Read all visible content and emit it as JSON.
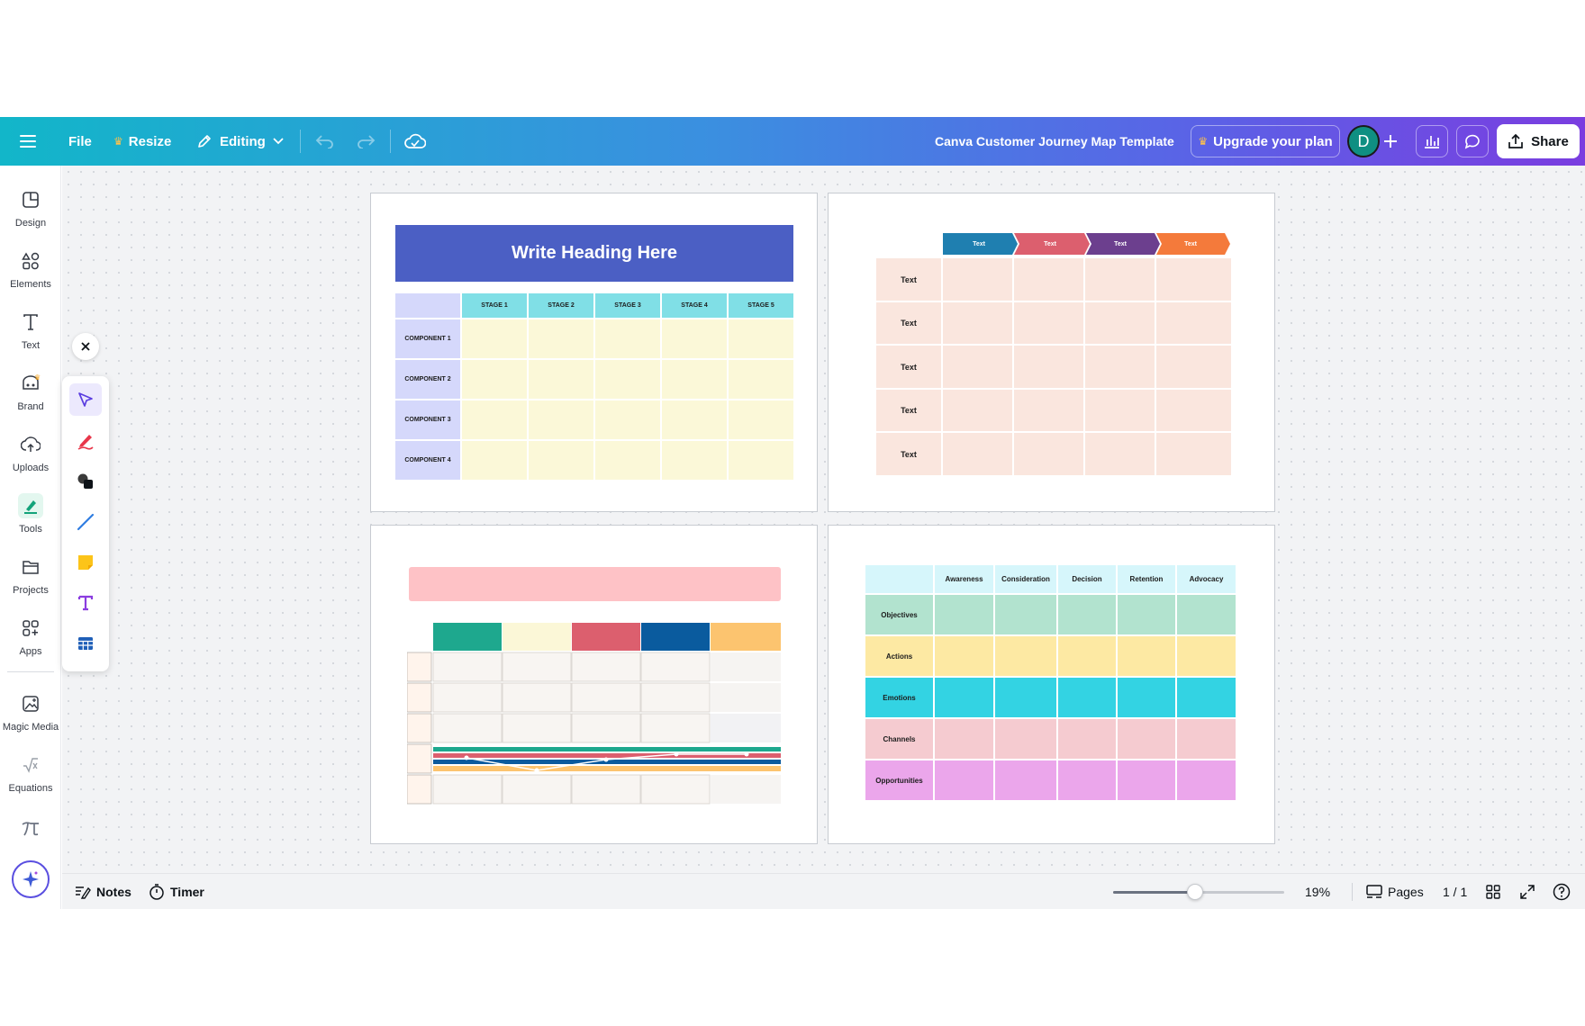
{
  "topbar": {
    "file_label": "File",
    "resize_label": "Resize",
    "editing_label": "Editing",
    "doc_title": "Canva Customer Journey Map Template",
    "upgrade_label": "Upgrade your plan",
    "avatar_initial": "D",
    "share_label": "Share"
  },
  "sidebar": {
    "items": [
      {
        "label": "Design"
      },
      {
        "label": "Elements"
      },
      {
        "label": "Text"
      },
      {
        "label": "Brand"
      },
      {
        "label": "Uploads"
      },
      {
        "label": "Tools"
      },
      {
        "label": "Projects"
      },
      {
        "label": "Apps"
      },
      {
        "label": "Magic Media"
      },
      {
        "label": "Equations"
      }
    ]
  },
  "page1": {
    "heading": "Write Heading Here",
    "stages": [
      "STAGE 1",
      "STAGE 2",
      "STAGE 3",
      "STAGE 4",
      "STAGE 5"
    ],
    "components": [
      "COMPONENT 1",
      "COMPONENT 2",
      "COMPONENT 3",
      "COMPONENT 4"
    ]
  },
  "page2": {
    "arrows": [
      "Text",
      "Text",
      "Text",
      "Text"
    ],
    "rows": [
      "Text",
      "Text",
      "Text",
      "Text",
      "Text"
    ]
  },
  "page4": {
    "columns": [
      "Awareness",
      "Consideration",
      "Decision",
      "Retention",
      "Advocacy"
    ],
    "rows": [
      "Objectives",
      "Actions",
      "Emotions",
      "Channels",
      "Opportunities"
    ]
  },
  "bottombar": {
    "notes_label": "Notes",
    "timer_label": "Timer",
    "zoom": "19%",
    "zoom_fraction": 0.48,
    "pages_label": "Pages",
    "page_count": "1 / 1"
  },
  "colors": {
    "page1_header": "#4b5fc4",
    "page1_stage": "#80dfe6",
    "page1_component": "#d5d8fb",
    "page1_cell": "#fbf8d8",
    "page2_arrows": [
      "#1f7fb0",
      "#dc5f6e",
      "#6c3f8e",
      "#f47a3b"
    ],
    "page2_cell": "#fae6de",
    "page3_banner": "#fec2c6",
    "page3_headers": [
      "#1ea88e",
      "#fbf7d7",
      "#dc5f6e",
      "#0a5b9e",
      "#fcc46f"
    ],
    "page4_header": "#d6f6fb",
    "page4_rows": [
      "#b2e3cf",
      "#fde9a3",
      "#33d3e3",
      "#f5cbd0",
      "#eba6eb"
    ]
  }
}
